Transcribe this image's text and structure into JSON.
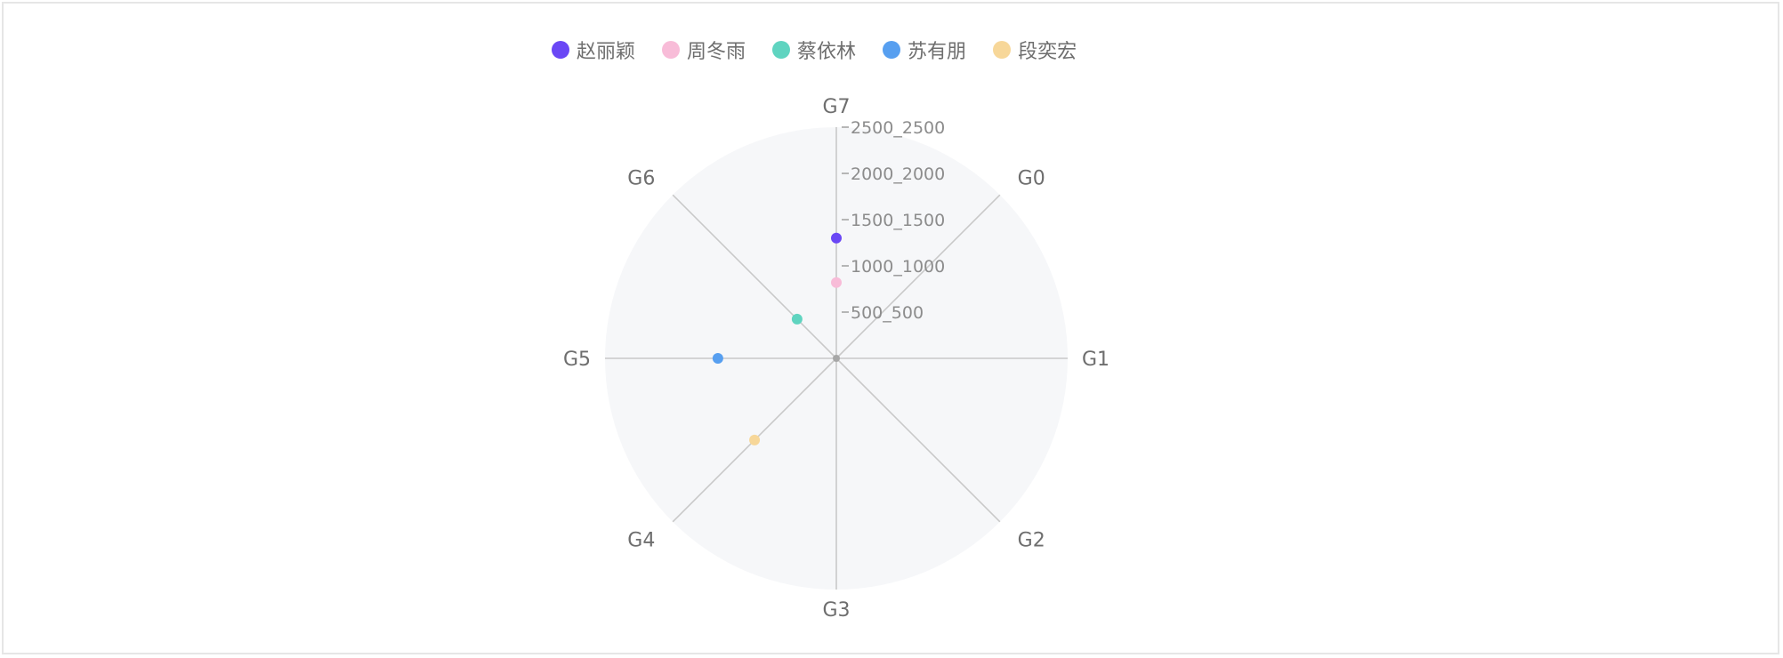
{
  "chart_data": {
    "type": "radar",
    "axes": [
      "G0",
      "G1",
      "G2",
      "G3",
      "G4",
      "G5",
      "G6",
      "G7"
    ],
    "radial_tick_labels": [
      "500_500",
      "1000_1000",
      "1500_1500",
      "2000_2000",
      "2500_2500"
    ],
    "radial_max": 2500,
    "series": [
      {
        "name": "赵丽颖",
        "color": "#6a47f5",
        "axis": "G7",
        "value": 1300
      },
      {
        "name": "周冬雨",
        "color": "#f8bcd8",
        "axis": "G7",
        "value": 820
      },
      {
        "name": "蔡依林",
        "color": "#5fd4c0",
        "axis": "G6",
        "value": 600
      },
      {
        "name": "苏有朋",
        "color": "#579ff0",
        "axis": "G5",
        "value": 1280
      },
      {
        "name": "段奕宏",
        "color": "#f7d799",
        "axis": "G4",
        "value": 1250
      }
    ],
    "legend_position": "top-center",
    "grid": true
  }
}
